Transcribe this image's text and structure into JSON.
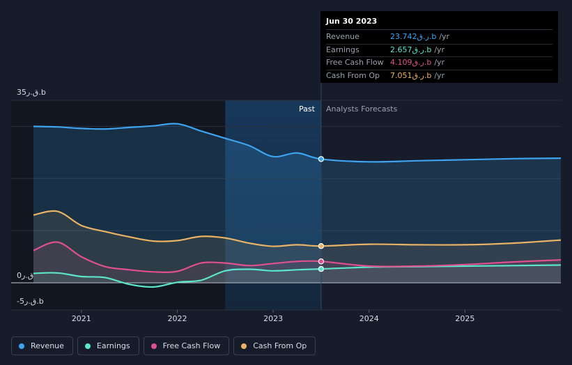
{
  "tooltip": {
    "date": "Jun 30 2023",
    "rows": [
      {
        "label": "Revenue",
        "value": "23.742ر.ق.b",
        "unit": "/yr",
        "color": "#3ea4f0"
      },
      {
        "label": "Earnings",
        "value": "2.657ر.ق.b",
        "unit": "/yr",
        "color": "#5be6cb"
      },
      {
        "label": "Free Cash Flow",
        "value": "4.109ر.ق.b",
        "unit": "/yr",
        "color": "#e0508e"
      },
      {
        "label": "Cash From Op",
        "value": "7.051ر.ق.b",
        "unit": "/yr",
        "color": "#eab264"
      }
    ]
  },
  "regions": {
    "past": "Past",
    "forecast": "Analysts Forecasts"
  },
  "legend": [
    {
      "label": "Revenue",
      "color": "#3ea4f0"
    },
    {
      "label": "Earnings",
      "color": "#5be6cb"
    },
    {
      "label": "Free Cash Flow",
      "color": "#e0508e"
    },
    {
      "label": "Cash From Op",
      "color": "#eab264"
    }
  ],
  "chart_data": {
    "type": "line",
    "y_tick_labels": [
      "35ق.ر.b",
      "0ق.ر",
      "-5ق.ر.b"
    ],
    "ylim": [
      -5,
      35
    ],
    "x_tick_labels": [
      "2021",
      "2022",
      "2023",
      "2024",
      "2025"
    ],
    "xlim": [
      2020.5,
      2026.0
    ],
    "past_end": 2023.5,
    "highlight_start": 2022.5,
    "series": [
      {
        "name": "Revenue",
        "color": "#3ea4f0",
        "points": [
          [
            2020.5,
            30.0
          ],
          [
            2020.75,
            29.9
          ],
          [
            2021.0,
            29.6
          ],
          [
            2021.25,
            29.5
          ],
          [
            2021.5,
            29.8
          ],
          [
            2021.75,
            30.1
          ],
          [
            2022.0,
            30.5
          ],
          [
            2022.25,
            29.1
          ],
          [
            2022.5,
            27.7
          ],
          [
            2022.75,
            26.3
          ],
          [
            2023.0,
            24.2
          ],
          [
            2023.25,
            24.9
          ],
          [
            2023.5,
            23.742
          ],
          [
            2024.0,
            23.2
          ],
          [
            2024.5,
            23.4
          ],
          [
            2025.0,
            23.6
          ],
          [
            2025.5,
            23.8
          ],
          [
            2026.0,
            23.9
          ]
        ]
      },
      {
        "name": "Earnings",
        "color": "#5be6cb",
        "points": [
          [
            2020.5,
            1.8
          ],
          [
            2020.75,
            1.9
          ],
          [
            2021.0,
            1.2
          ],
          [
            2021.25,
            1.0
          ],
          [
            2021.5,
            -0.3
          ],
          [
            2021.75,
            -0.8
          ],
          [
            2022.0,
            0.1
          ],
          [
            2022.25,
            0.5
          ],
          [
            2022.5,
            2.3
          ],
          [
            2022.75,
            2.6
          ],
          [
            2023.0,
            2.3
          ],
          [
            2023.25,
            2.5
          ],
          [
            2023.5,
            2.657
          ],
          [
            2024.0,
            3.0
          ],
          [
            2024.5,
            3.1
          ],
          [
            2025.0,
            3.2
          ],
          [
            2025.5,
            3.3
          ],
          [
            2026.0,
            3.4
          ]
        ]
      },
      {
        "name": "Free Cash Flow",
        "color": "#e0508e",
        "points": [
          [
            2020.5,
            6.2
          ],
          [
            2020.75,
            7.8
          ],
          [
            2021.0,
            5.0
          ],
          [
            2021.25,
            3.1
          ],
          [
            2021.5,
            2.5
          ],
          [
            2021.75,
            2.1
          ],
          [
            2022.0,
            2.2
          ],
          [
            2022.25,
            3.8
          ],
          [
            2022.5,
            3.8
          ],
          [
            2022.75,
            3.3
          ],
          [
            2023.0,
            3.7
          ],
          [
            2023.25,
            4.1
          ],
          [
            2023.5,
            4.109
          ],
          [
            2024.0,
            3.2
          ],
          [
            2024.5,
            3.2
          ],
          [
            2025.0,
            3.5
          ],
          [
            2025.5,
            4.0
          ],
          [
            2026.0,
            4.4
          ]
        ]
      },
      {
        "name": "Cash From Op",
        "color": "#eab264",
        "points": [
          [
            2020.5,
            13.0
          ],
          [
            2020.75,
            13.7
          ],
          [
            2021.0,
            11.0
          ],
          [
            2021.25,
            9.8
          ],
          [
            2021.5,
            8.8
          ],
          [
            2021.75,
            8.0
          ],
          [
            2022.0,
            8.1
          ],
          [
            2022.25,
            8.9
          ],
          [
            2022.5,
            8.6
          ],
          [
            2022.75,
            7.6
          ],
          [
            2023.0,
            7.0
          ],
          [
            2023.25,
            7.3
          ],
          [
            2023.5,
            7.051
          ],
          [
            2024.0,
            7.4
          ],
          [
            2024.5,
            7.3
          ],
          [
            2025.0,
            7.3
          ],
          [
            2025.5,
            7.6
          ],
          [
            2026.0,
            8.2
          ]
        ]
      }
    ]
  }
}
